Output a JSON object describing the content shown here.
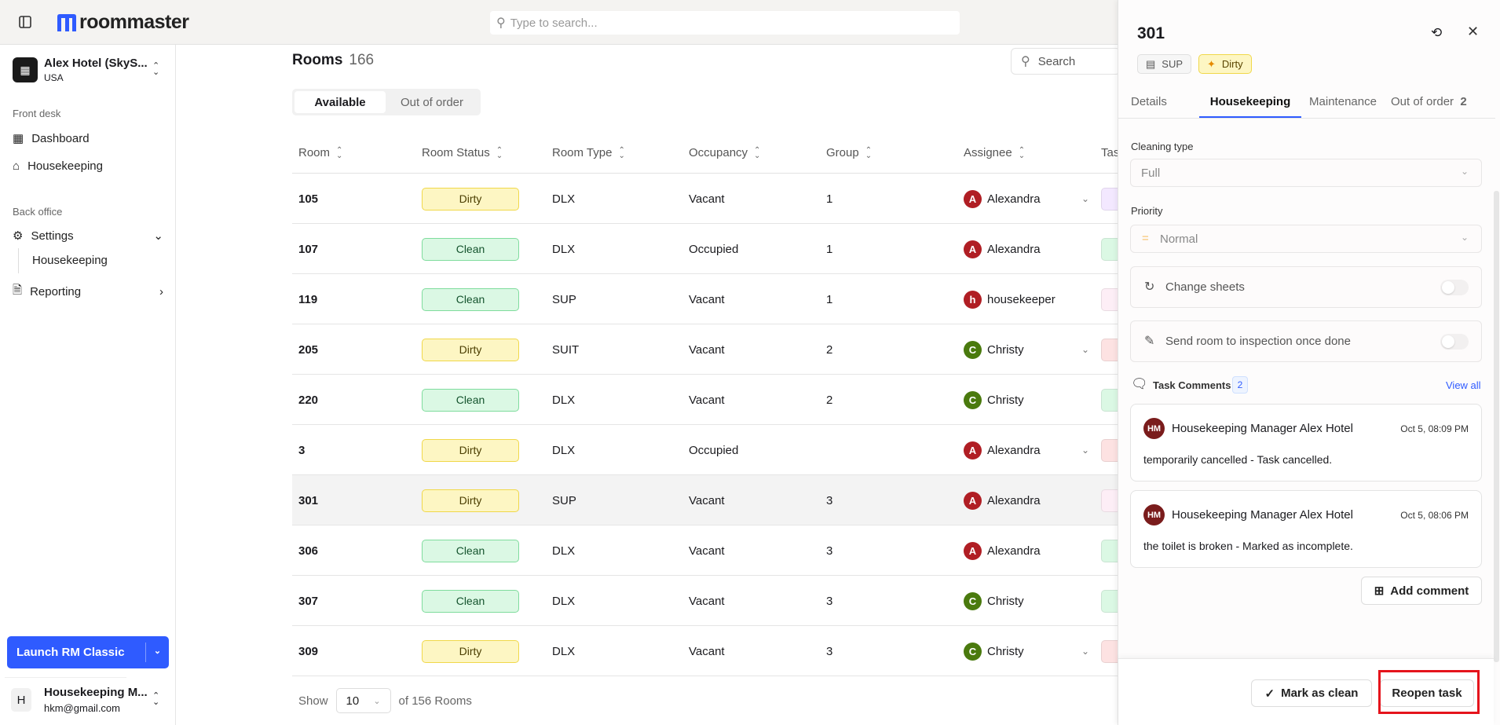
{
  "app": {
    "brand": "roommaster",
    "search_placeholder": "Type to search..."
  },
  "sidebar": {
    "hotel_name": "Alex Hotel (SkyS...",
    "hotel_country": "USA",
    "sections": {
      "front_desk": "Front desk",
      "back_office": "Back office"
    },
    "items": {
      "dashboard": "Dashboard",
      "housekeeping": "Housekeeping",
      "settings": "Settings",
      "settings_housekeeping": "Housekeeping",
      "reporting": "Reporting"
    },
    "launch_label": "Launch RM Classic",
    "user": {
      "initial": "H",
      "name": "Housekeeping M...",
      "email": "hkm@gmail.com"
    }
  },
  "main": {
    "title": "Rooms",
    "count": "166",
    "search_placeholder": "Search",
    "tabs": [
      "Available",
      "Out of order"
    ],
    "columns": [
      "Room",
      "Room Status",
      "Room Type",
      "Occupancy",
      "Group",
      "Assignee",
      "Tas"
    ],
    "rows": [
      {
        "room": "105",
        "status": "Dirty",
        "type": "DLX",
        "occupancy": "Vacant",
        "group": "1",
        "assignee": "Alexandra",
        "initial": "A",
        "dropdown": true,
        "task_color": "#f3e8ff"
      },
      {
        "room": "107",
        "status": "Clean",
        "type": "DLX",
        "occupancy": "Occupied",
        "group": "1",
        "assignee": "Alexandra",
        "initial": "A",
        "dropdown": false,
        "task_color": "#dbf8e4"
      },
      {
        "room": "119",
        "status": "Clean",
        "type": "SUP",
        "occupancy": "Vacant",
        "group": "1",
        "assignee": "housekeeper",
        "initial": "h",
        "dropdown": false,
        "task_color": "#fdeef6"
      },
      {
        "room": "205",
        "status": "Dirty",
        "type": "SUIT",
        "occupancy": "Vacant",
        "group": "2",
        "assignee": "Christy",
        "initial": "C",
        "dropdown": true,
        "task_color": "#fde2e2"
      },
      {
        "room": "220",
        "status": "Clean",
        "type": "DLX",
        "occupancy": "Vacant",
        "group": "2",
        "assignee": "Christy",
        "initial": "C",
        "dropdown": false,
        "task_color": "#dbf8e4"
      },
      {
        "room": "3",
        "status": "Dirty",
        "type": "DLX",
        "occupancy": "Occupied",
        "group": "",
        "assignee": "Alexandra",
        "initial": "A",
        "dropdown": true,
        "task_color": "#fde2e2"
      },
      {
        "room": "301",
        "status": "Dirty",
        "type": "SUP",
        "occupancy": "Vacant",
        "group": "3",
        "assignee": "Alexandra",
        "initial": "A",
        "dropdown": false,
        "task_color": "#fdeef6"
      },
      {
        "room": "306",
        "status": "Clean",
        "type": "DLX",
        "occupancy": "Vacant",
        "group": "3",
        "assignee": "Alexandra",
        "initial": "A",
        "dropdown": false,
        "task_color": "#dbf8e4"
      },
      {
        "room": "307",
        "status": "Clean",
        "type": "DLX",
        "occupancy": "Vacant",
        "group": "3",
        "assignee": "Christy",
        "initial": "C",
        "dropdown": false,
        "task_color": "#dbf8e4"
      },
      {
        "room": "309",
        "status": "Dirty",
        "type": "DLX",
        "occupancy": "Vacant",
        "group": "3",
        "assignee": "Christy",
        "initial": "C",
        "dropdown": true,
        "task_color": "#fde2e2"
      }
    ],
    "footer": {
      "show": "Show",
      "page_size": "10",
      "total": "of 156 Rooms"
    }
  },
  "panel": {
    "title": "301",
    "room_type": "SUP",
    "status": "Dirty",
    "tabs": [
      "Details",
      "Housekeeping",
      "Maintenance",
      "Out of order"
    ],
    "out_of_order_count": "2",
    "active_tab": "Housekeeping",
    "cleaning_type_label": "Cleaning type",
    "cleaning_type": "Full",
    "priority_label": "Priority",
    "priority": "Normal",
    "change_sheets": "Change sheets",
    "change_sheets_on": false,
    "send_inspection": "Send room to inspection once done",
    "send_inspection_on": false,
    "comments_label": "Task Comments",
    "comments_count": "2",
    "view_all": "View all",
    "comments": [
      {
        "initials": "HM",
        "author": "Housekeeping Manager Alex Hotel",
        "time": "Oct 5, 08:09 PM",
        "text": "temporarily cancelled - Task cancelled."
      },
      {
        "initials": "HM",
        "author": "Housekeeping Manager Alex Hotel",
        "time": "Oct 5, 08:06 PM",
        "text": "the toilet is broken - Marked as incomplete."
      }
    ],
    "add_comment": "Add comment",
    "mark_clean": "Mark as clean",
    "reopen": "Reopen task"
  },
  "colors": {
    "accent": "#2f5bff",
    "dirty": "#fdf6c3",
    "clean": "#dbf8e4",
    "avatar_a": "#b01e24",
    "avatar_c": "#4a7a0e",
    "highlight": "#e5141c"
  }
}
